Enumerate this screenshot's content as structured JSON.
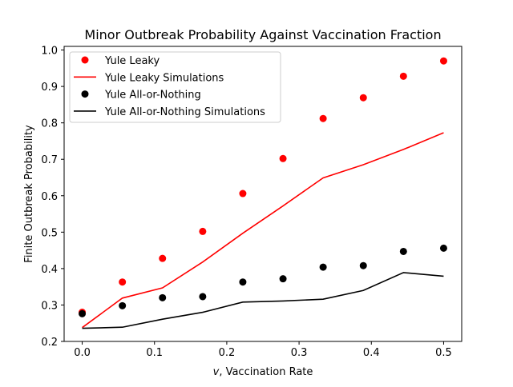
{
  "chart_data": {
    "type": "scatter",
    "title": "Minor Outbreak Probability Against Vaccination Fraction",
    "xlabel_var": "v",
    "xlabel_rest": ", Vaccination Rate",
    "ylabel": "Finite Outbreak Probability",
    "xlim": [
      -0.025,
      0.525
    ],
    "ylim": [
      0.2,
      1.01
    ],
    "xticks": [
      0.0,
      0.1,
      0.2,
      0.3,
      0.4,
      0.5
    ],
    "xtick_labels": [
      "0.0",
      "0.1",
      "0.2",
      "0.3",
      "0.4",
      "0.5"
    ],
    "yticks": [
      0.2,
      0.3,
      0.4,
      0.5,
      0.6,
      0.7,
      0.8,
      0.9,
      1.0
    ],
    "ytick_labels": [
      "0.2",
      "0.3",
      "0.4",
      "0.5",
      "0.6",
      "0.7",
      "0.8",
      "0.9",
      "1.0"
    ],
    "grid": false,
    "legend_position": "top-left",
    "x": [
      0.0,
      0.0556,
      0.1111,
      0.1667,
      0.2222,
      0.2778,
      0.3333,
      0.3889,
      0.4444,
      0.5
    ],
    "series": [
      {
        "name": "Yule Leaky",
        "kind": "scatter",
        "color": "#ff0000",
        "values": [
          0.28,
          0.363,
          0.428,
          0.502,
          0.606,
          0.702,
          0.812,
          0.869,
          0.928,
          0.97
        ]
      },
      {
        "name": "Yule Leaky Simulations",
        "kind": "line",
        "color": "#ff0000",
        "values": [
          0.238,
          0.319,
          0.347,
          0.418,
          0.497,
          0.572,
          0.649,
          0.685,
          0.727,
          0.773
        ]
      },
      {
        "name": "Yule All-or-Nothing",
        "kind": "scatter",
        "color": "#000000",
        "values": [
          0.276,
          0.298,
          0.32,
          0.323,
          0.363,
          0.372,
          0.404,
          0.408,
          0.447,
          0.456
        ]
      },
      {
        "name": "Yule All-or-Nothing Simulations",
        "kind": "line",
        "color": "#000000",
        "values": [
          0.236,
          0.239,
          0.261,
          0.28,
          0.308,
          0.311,
          0.316,
          0.34,
          0.389,
          0.379
        ]
      }
    ]
  }
}
